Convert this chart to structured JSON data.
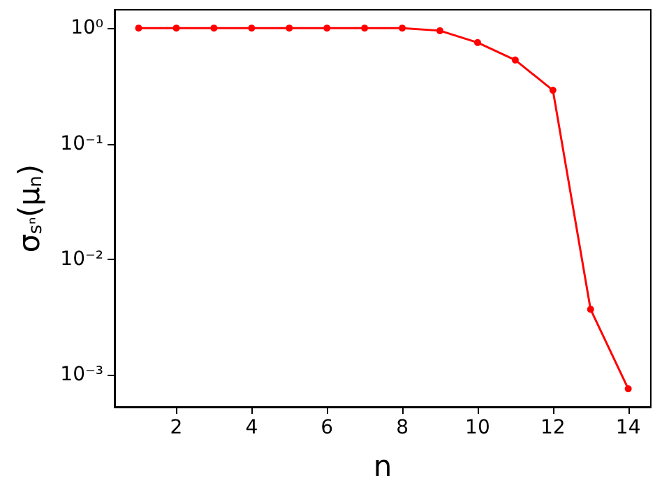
{
  "chart_data": {
    "type": "line",
    "xlabel": "n",
    "ylabel": "σ$_{sⁿ}$(μ$_{n}$)",
    "x": [
      1,
      2,
      3,
      4,
      5,
      6,
      7,
      8,
      9,
      10,
      11,
      12,
      13,
      14
    ],
    "series": [
      {
        "color": "#ff0000",
        "values": [
          1,
          1,
          1,
          1,
          1,
          1,
          1,
          1,
          0.95,
          0.75,
          0.53,
          0.29,
          0.0037,
          0.00076
        ]
      }
    ],
    "log": "y",
    "xlim": [
      0.36,
      14.6
    ],
    "xticks": [
      2,
      4,
      6,
      8,
      10,
      12,
      14
    ],
    "ylim": [
      0.00053,
      1.44
    ],
    "yticks": [
      {
        "value": 1,
        "label": "10⁰"
      },
      {
        "value": 0.1,
        "label": "10⁻¹"
      },
      {
        "value": 0.01,
        "label": "10⁻²"
      },
      {
        "value": 0.001,
        "label": "10⁻³"
      }
    ],
    "marker": "circle",
    "line_style": "solid",
    "grid": false
  }
}
